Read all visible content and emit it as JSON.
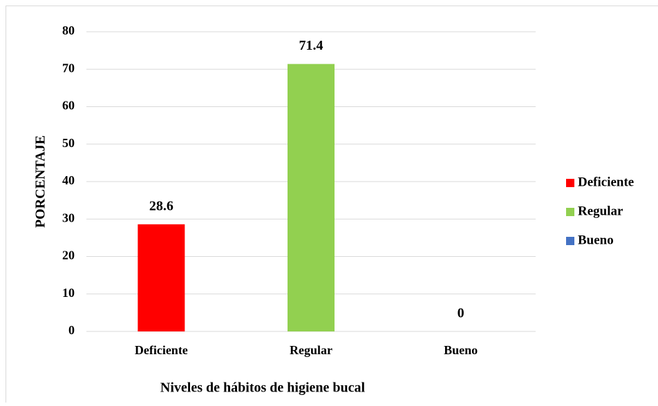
{
  "chart_data": {
    "type": "bar",
    "categories": [
      "Deficiente",
      "Regular",
      "Bueno"
    ],
    "values": [
      28.6,
      71.4,
      0
    ],
    "colors": [
      "#ff0000",
      "#92d050",
      "#4472c4"
    ],
    "ylim": [
      0,
      80
    ],
    "yticks": [
      0,
      10,
      20,
      30,
      40,
      50,
      60,
      70,
      80
    ],
    "grid": true,
    "legend": "right",
    "y_label": "PORCENTAJE",
    "x_label": "Niveles de hábitos de higiene bucal"
  }
}
